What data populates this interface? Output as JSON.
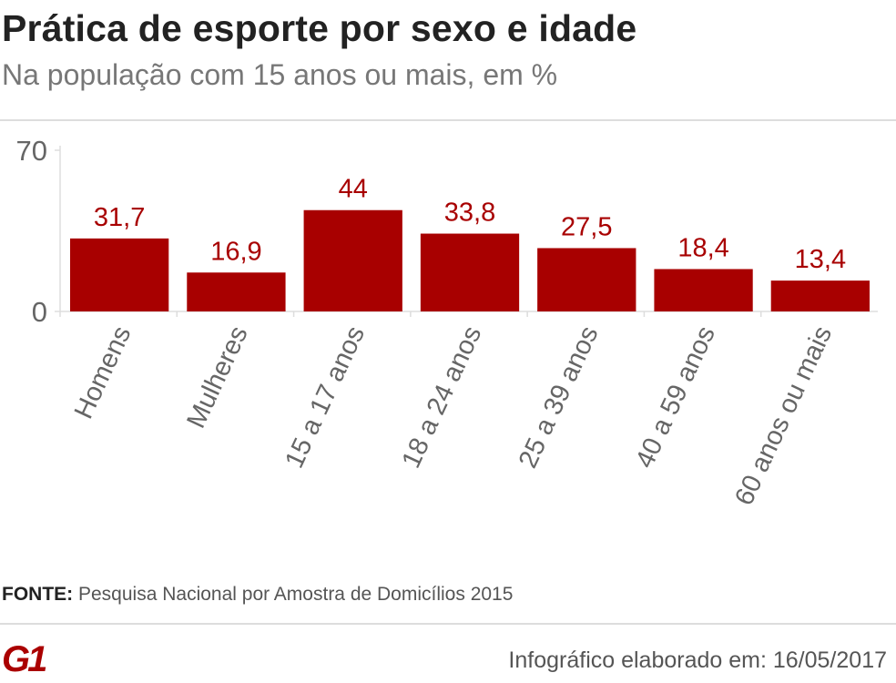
{
  "title": "Prática de esporte por sexo e idade",
  "subtitle": "Na população com 15 anos ou mais, em %",
  "footer": {
    "source_label": "FONTE:",
    "source": "Pesquisa Nacional por Amostra de Domicílios 2015",
    "credit": "Infográfico elaborado em: 16/05/2017",
    "logo": "G1"
  },
  "chart_data": {
    "type": "bar",
    "categories": [
      "Homens",
      "Mulheres",
      "15 a 17 anos",
      "18 a 24 anos",
      "25 a 39 anos",
      "40 a 59 anos",
      "60 anos ou mais"
    ],
    "values": [
      31.7,
      16.9,
      44,
      33.8,
      27.5,
      18.4,
      13.4
    ],
    "data_labels": [
      "31,7",
      "16,9",
      "44",
      "33,8",
      "27,5",
      "18,4",
      "13,4"
    ],
    "ylim": [
      0,
      70
    ],
    "yticks": [
      "0",
      "70"
    ],
    "grid": false,
    "colors": {
      "bar": "#a80000",
      "label": "#a80000",
      "axis_text": "#666666"
    }
  }
}
